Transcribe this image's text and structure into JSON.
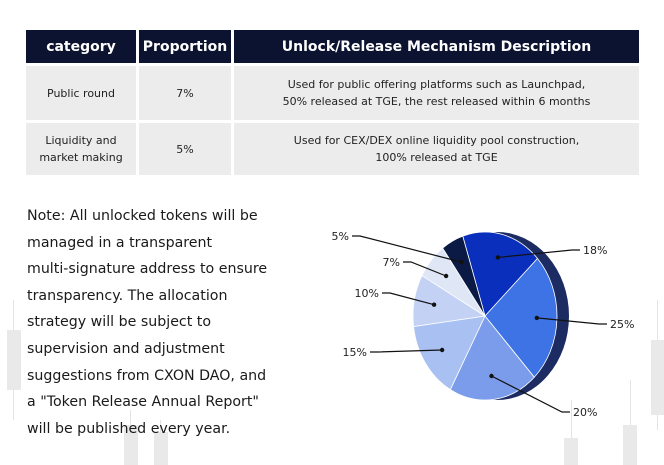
{
  "table": {
    "headers": [
      "category",
      "Proportion",
      "Unlock/Release Mechanism Description"
    ],
    "rows": [
      {
        "category": "Public round",
        "proportion": "7%",
        "desc_line1": "Used for public offering platforms such as Launchpad,",
        "desc_line2": "50% released at TGE, the rest released within 6 months"
      },
      {
        "category_line1": "Liquidity and",
        "category_line2": "market making",
        "proportion": "5%",
        "desc_line1": "Used for CEX/DEX online liquidity pool construction,",
        "desc_line2": "100% released at TGE"
      }
    ]
  },
  "note": {
    "lines": [
      "Note: All unlocked tokens will be",
      "managed in a transparent",
      "multi-signature address to ensure",
      "transparency. The allocation",
      "strategy will be subject to",
      "supervision and adjustment",
      "suggestions from CXON DAO, and",
      "a \"Token Release Annual Report\"",
      "will be published every year."
    ]
  },
  "chart_data": {
    "type": "pie",
    "values": [
      18,
      25,
      20,
      15,
      10,
      7,
      5
    ],
    "labels": [
      "18%",
      "25%",
      "20%",
      "15%",
      "10%",
      "7%",
      "5%"
    ],
    "colors": [
      "#0a2fbd",
      "#3d73e4",
      "#7b9ceb",
      "#a9c0f2",
      "#c3d2f4",
      "#dfe6f6",
      "#0b1a45"
    ]
  }
}
